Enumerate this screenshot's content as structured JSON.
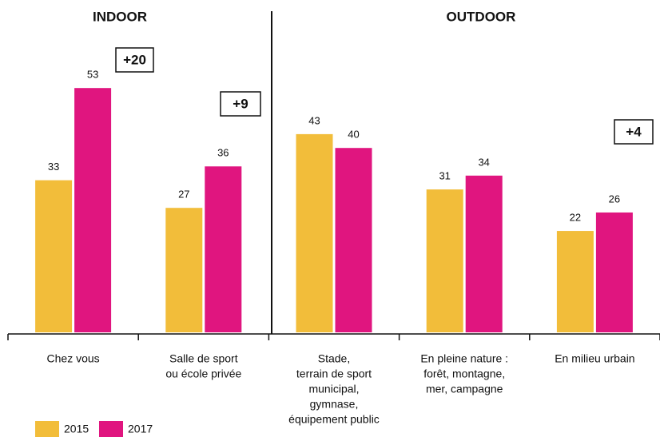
{
  "chart_data": {
    "type": "bar",
    "section_labels": [
      "INDOOR",
      "OUTDOOR"
    ],
    "annotations": [
      "+20",
      "+9",
      "+4"
    ],
    "categories": [
      [
        "Chez vous"
      ],
      [
        "Salle de sport",
        "ou école privée"
      ],
      [
        "Stade,",
        "terrain de sport",
        "municipal,",
        "gymnase,",
        "équipement public"
      ],
      [
        "En pleine nature :",
        "forêt, montagne,",
        "mer, campagne"
      ],
      [
        "En milieu urbain"
      ]
    ],
    "series": [
      {
        "name": "2015",
        "color": "#f2bd3a",
        "values": [
          33,
          27,
          43,
          31,
          22
        ]
      },
      {
        "name": "2017",
        "color": "#e0157f",
        "values": [
          53,
          36,
          40,
          34,
          26
        ]
      }
    ]
  }
}
